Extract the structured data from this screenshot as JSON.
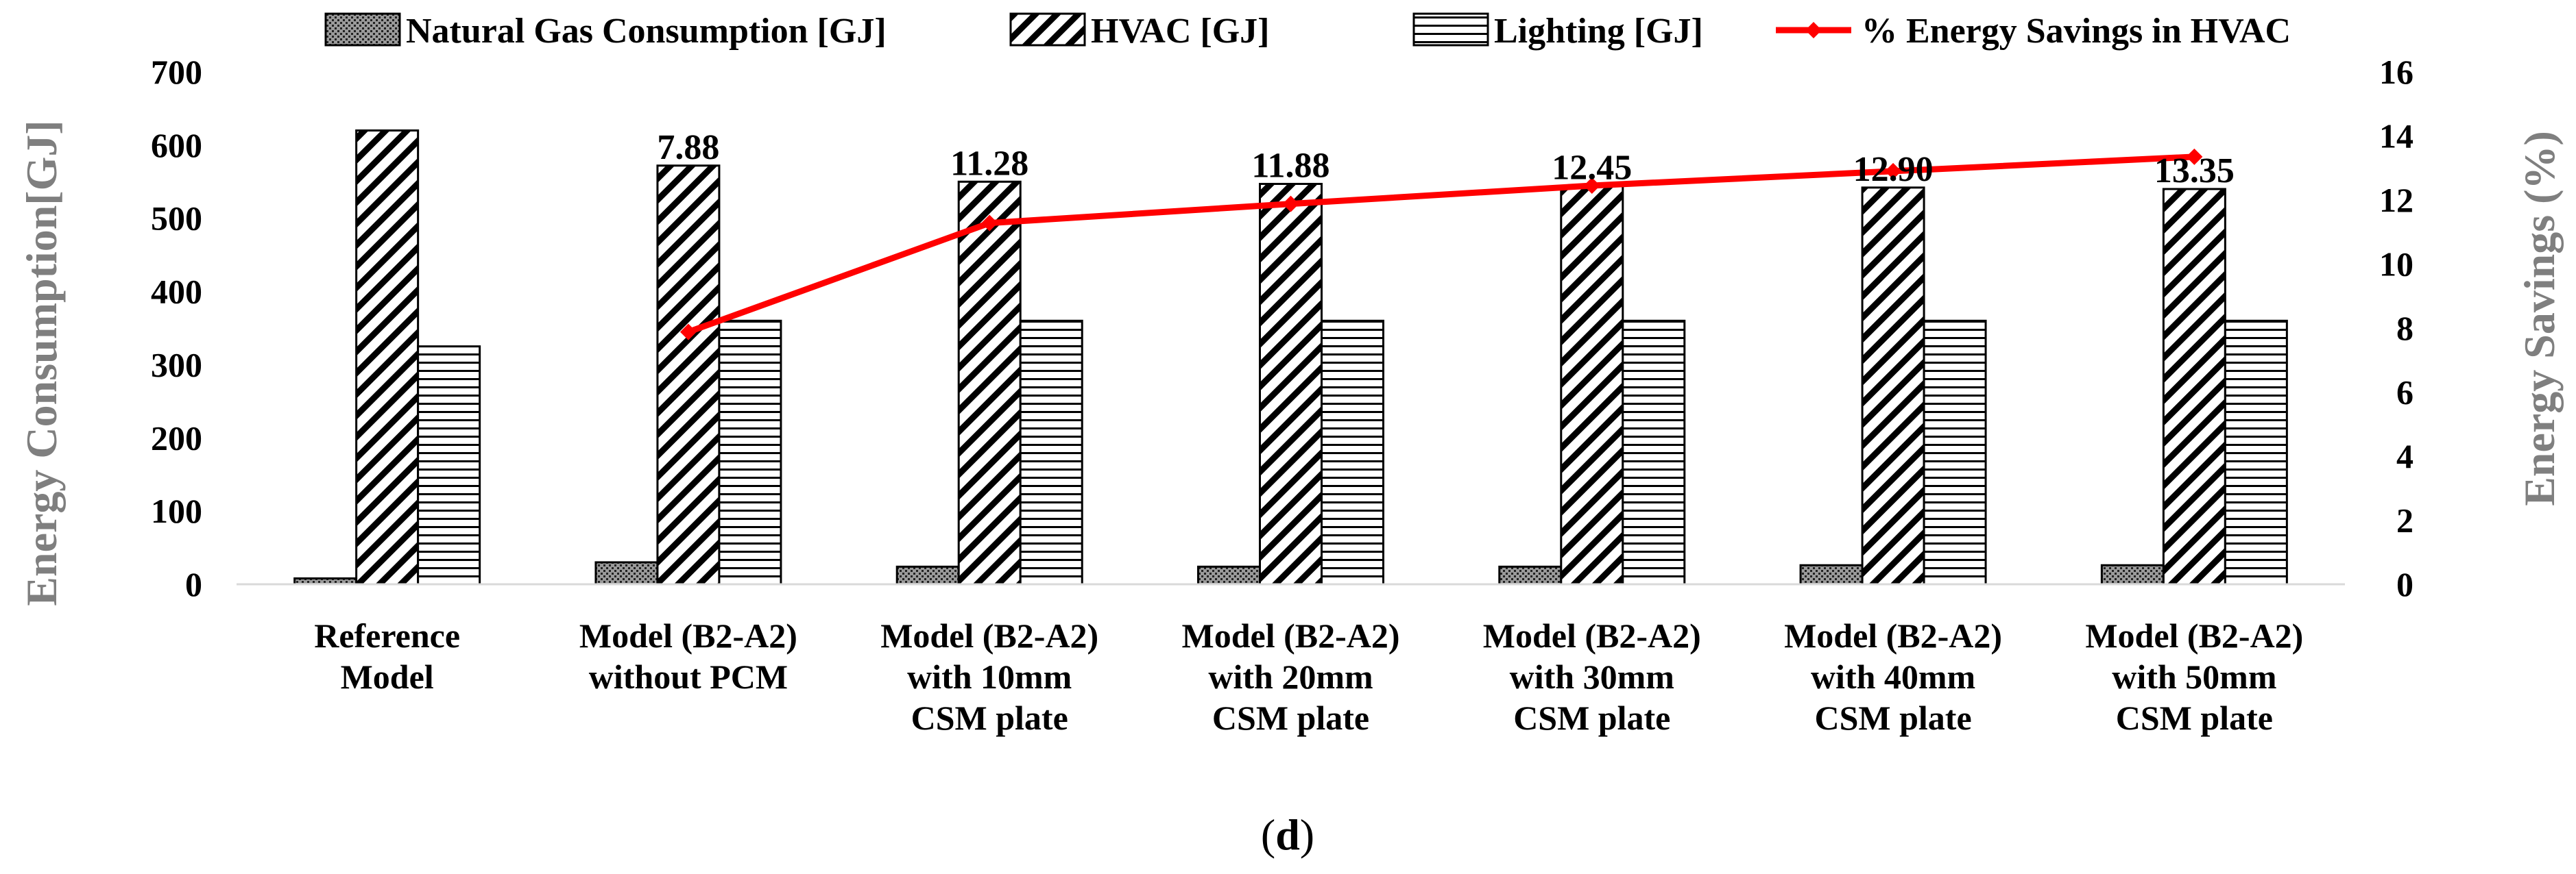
{
  "chart_data": {
    "type": "bar",
    "title": "",
    "categories": [
      [
        "Reference",
        "Model"
      ],
      [
        "Model (B2-A2)",
        "without PCM"
      ],
      [
        "Model (B2-A2)",
        "with 10mm",
        "CSM plate"
      ],
      [
        "Model (B2-A2)",
        "with 20mm",
        "CSM plate"
      ],
      [
        "Model (B2-A2)",
        "with 30mm",
        "CSM plate"
      ],
      [
        "Model (B2-A2)",
        "with 40mm",
        "CSM plate"
      ],
      [
        "Model (B2-A2)",
        "with 50mm",
        "CSM plate"
      ]
    ],
    "ylabel": "Energy Consumption[GJ]",
    "y2label": "Energy Savings (%)",
    "ylim": [
      0,
      700
    ],
    "y2lim": [
      0,
      16
    ],
    "yticks": [
      "0",
      "100",
      "200",
      "300",
      "400",
      "500",
      "600",
      "700"
    ],
    "y2ticks": [
      "0",
      "2",
      "4",
      "6",
      "8",
      "10",
      "12",
      "14",
      "16"
    ],
    "series": [
      {
        "name": "Natural Gas Consumption [GJ]",
        "axis": "left",
        "kind": "bar",
        "pattern": "dots",
        "values": [
          8,
          30,
          24,
          24,
          24,
          26,
          26
        ]
      },
      {
        "name": "HVAC [GJ]",
        "axis": "left",
        "kind": "bar",
        "pattern": "diagonal",
        "values": [
          620,
          572,
          550,
          547,
          544,
          542,
          540
        ]
      },
      {
        "name": "Lighting [GJ]",
        "axis": "left",
        "kind": "bar",
        "pattern": "horizontal",
        "values": [
          325,
          360,
          360,
          360,
          360,
          360,
          360
        ]
      },
      {
        "name": "% Energy Savings in HVAC",
        "axis": "right",
        "kind": "line",
        "color": "#ff0000",
        "values": [
          null,
          7.88,
          11.28,
          11.88,
          12.45,
          12.9,
          13.35
        ],
        "labels": [
          "",
          "7.88",
          "11.28",
          "11.88",
          "12.45",
          "12.90",
          "13.35"
        ]
      }
    ],
    "legend": "top"
  },
  "caption": "(d)",
  "caption_letter": "d",
  "colors": {
    "line": "#ff0000",
    "axis_label": "#7f7f7f",
    "bars": "#000000"
  }
}
